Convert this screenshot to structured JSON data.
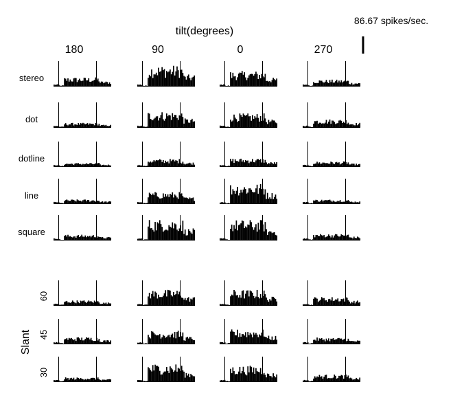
{
  "chart_data": {
    "type": "bar",
    "title": "tilt(degrees)",
    "scale_bar": {
      "label": "86.67 spikes/sec.",
      "value": 86.67,
      "units": "spikes/sec."
    },
    "tilt_values": [
      "180",
      "90",
      "0",
      "270"
    ],
    "conditions": [
      "stereo",
      "dot",
      "dotline",
      "line",
      "square"
    ],
    "slant_title": "Slant",
    "slant_values": [
      "60",
      "45",
      "30"
    ],
    "mean_rate_during_stimulus": {
      "stereo": [
        30,
        72,
        52,
        22
      ],
      "dot": [
        15,
        55,
        48,
        28
      ],
      "dotline": [
        12,
        26,
        28,
        17
      ],
      "line": [
        14,
        40,
        70,
        14
      ],
      "square": [
        18,
        72,
        70,
        21
      ],
      "60": [
        17,
        54,
        54,
        29
      ],
      "45": [
        23,
        45,
        50,
        21
      ],
      "30": [
        14,
        62,
        55,
        24
      ]
    }
  }
}
